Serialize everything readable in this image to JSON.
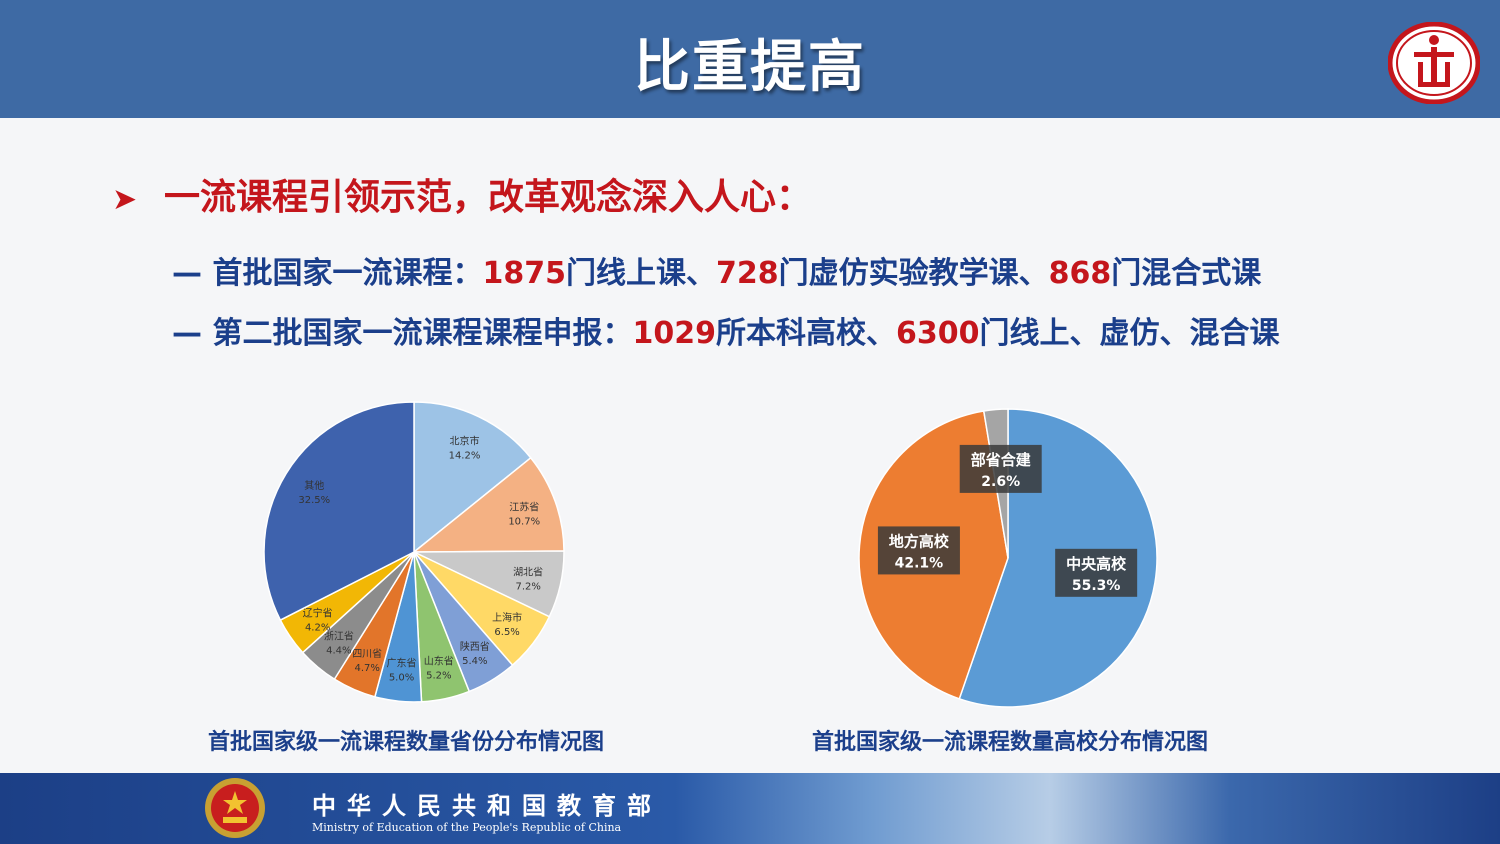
{
  "header": {
    "title": "比重提高"
  },
  "bullet": {
    "text": "一流课程引领示范，改革观念深入人心："
  },
  "lines": [
    {
      "dash": "—",
      "parts": [
        {
          "t": "首批国家一流课程：",
          "red": false
        },
        {
          "t": "1875",
          "red": true
        },
        {
          "t": "门线上课、",
          "red": false
        },
        {
          "t": "728",
          "red": true
        },
        {
          "t": "门虚仿实验教学课、",
          "red": false
        },
        {
          "t": "868",
          "red": true
        },
        {
          "t": "门混合式课",
          "red": false
        }
      ]
    },
    {
      "dash": "—",
      "parts": [
        {
          "t": "第二批国家一流课程课程申报：",
          "red": false
        },
        {
          "t": "1029",
          "red": true
        },
        {
          "t": "所本科高校、",
          "red": false
        },
        {
          "t": "6300",
          "red": true
        },
        {
          "t": "门线上、虚仿、混合课",
          "red": false
        }
      ]
    }
  ],
  "chart_data": [
    {
      "type": "pie",
      "title": "首批国家级一流课程数量省份分布情况图",
      "slices": [
        {
          "label": "北京市",
          "value": 14.2,
          "display": "14.2%",
          "color": "#9dc3e6"
        },
        {
          "label": "江苏省",
          "value": 10.7,
          "display": "10.7%",
          "color": "#f4b183"
        },
        {
          "label": "湖北省",
          "value": 7.2,
          "display": "7.2%",
          "color": "#c9c9c9"
        },
        {
          "label": "上海市",
          "value": 6.5,
          "display": "6.5%",
          "color": "#ffd966"
        },
        {
          "label": "陕西省",
          "value": 5.4,
          "display": "5.4%",
          "color": "#7f9fd6"
        },
        {
          "label": "山东省",
          "value": 5.2,
          "display": "5.2%",
          "color": "#8fc46f"
        },
        {
          "label": "广东省",
          "value": 5.0,
          "display": "5.0%",
          "color": "#4f94d4"
        },
        {
          "label": "四川省",
          "value": 4.7,
          "display": "4.7%",
          "color": "#e2752a"
        },
        {
          "label": "浙江省",
          "value": 4.4,
          "display": "4.4%",
          "color": "#8c8c8c"
        },
        {
          "label": "辽宁省",
          "value": 4.2,
          "display": "4.2%",
          "color": "#f2b705"
        },
        {
          "label": "其他",
          "value": 32.5,
          "display": "32.5%",
          "color": "#3e62ad"
        }
      ]
    },
    {
      "type": "pie",
      "title": "首批国家级一流课程数量高校分布情况图",
      "slices": [
        {
          "label": "中央高校",
          "value": 55.3,
          "display": "55.3%",
          "color": "#5b9bd5"
        },
        {
          "label": "地方高校",
          "value": 42.1,
          "display": "42.1%",
          "color": "#ed7d31"
        },
        {
          "label": "部省合建",
          "value": 2.6,
          "display": "2.6%",
          "color": "#a5a5a5"
        }
      ]
    }
  ],
  "footer": {
    "cn": "中华人民共和国教育部",
    "en": "Ministry of Education of the People's Republic of China"
  },
  "colors": {
    "header_bg": "#3e6aa4",
    "accent_red": "#c4161c",
    "text_blue": "#1b3f8b"
  }
}
